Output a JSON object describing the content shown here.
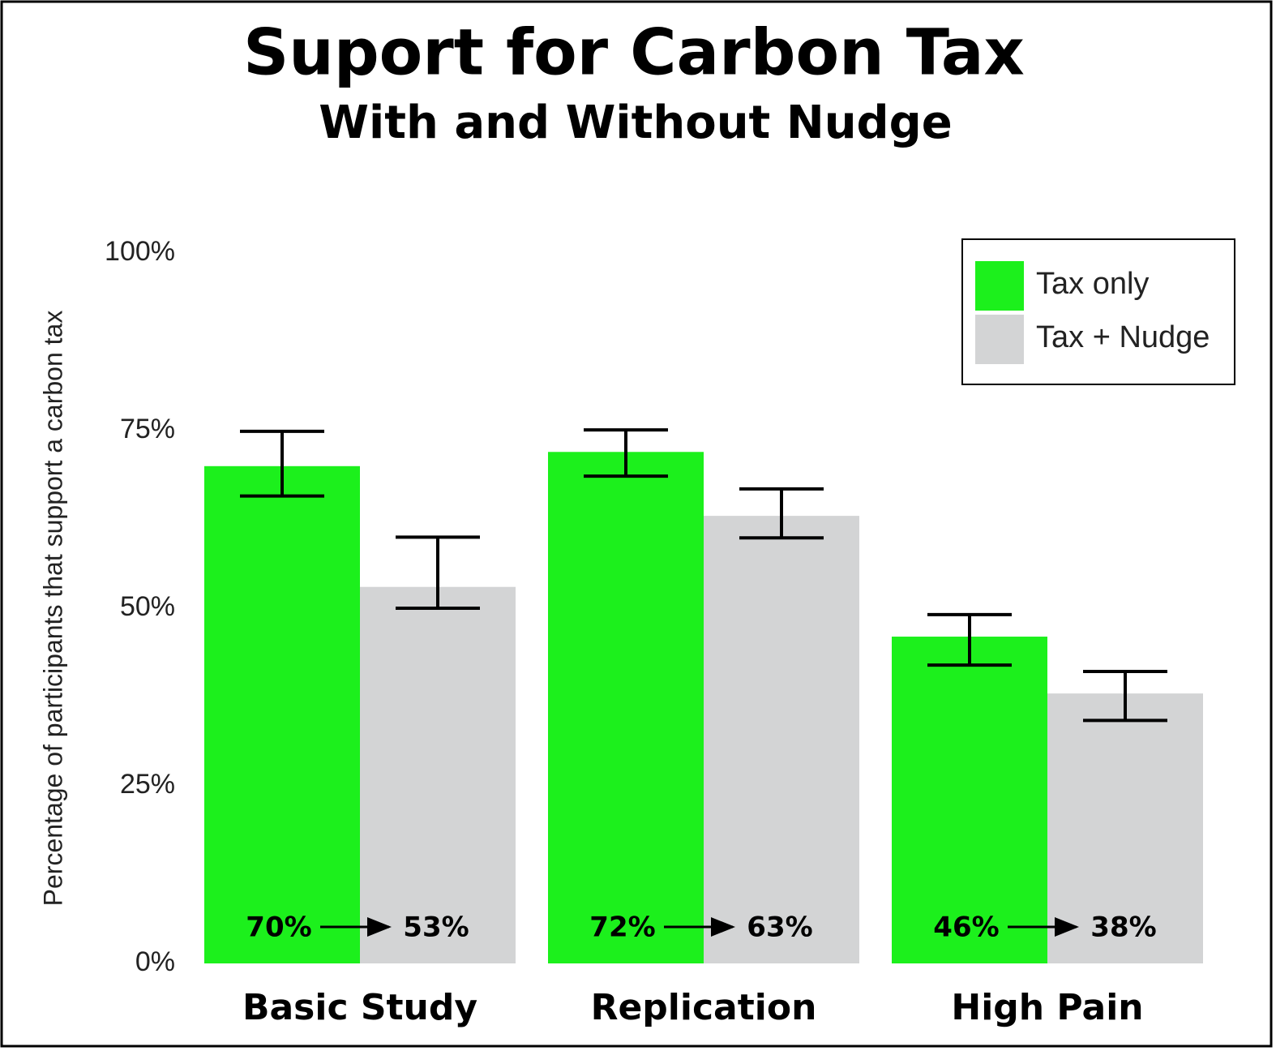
{
  "chart_data": {
    "type": "bar",
    "title": "Suport for Carbon Tax",
    "subtitle": "With and Without Nudge",
    "ylabel": "Percentage of participants that support a carbon tax",
    "categories": [
      "Basic Study",
      "Replication",
      "High Pain"
    ],
    "series": [
      {
        "name": "Tax only",
        "color": "#1cf01c",
        "values": [
          70,
          72,
          46
        ],
        "value_labels": [
          "70%",
          "72%",
          "46%"
        ],
        "error_low": [
          65.8,
          68.6,
          42.0
        ],
        "error_high": [
          74.9,
          75.1,
          49.1
        ]
      },
      {
        "name": "Tax + Nudge",
        "color": "#d3d4d5",
        "values": [
          53,
          63,
          38
        ],
        "value_labels": [
          "53%",
          "63%",
          "38%"
        ],
        "error_low": [
          50.0,
          59.9,
          34.2
        ],
        "error_high": [
          60.0,
          66.8,
          41.1
        ]
      }
    ],
    "ylim": [
      0,
      100
    ],
    "yticks": [
      {
        "value": 0,
        "label": "0%"
      },
      {
        "value": 25,
        "label": "25%"
      },
      {
        "value": 50,
        "label": "50%"
      },
      {
        "value": 75,
        "label": "75%"
      },
      {
        "value": 100,
        "label": "100%"
      }
    ],
    "legend": "upper right"
  }
}
